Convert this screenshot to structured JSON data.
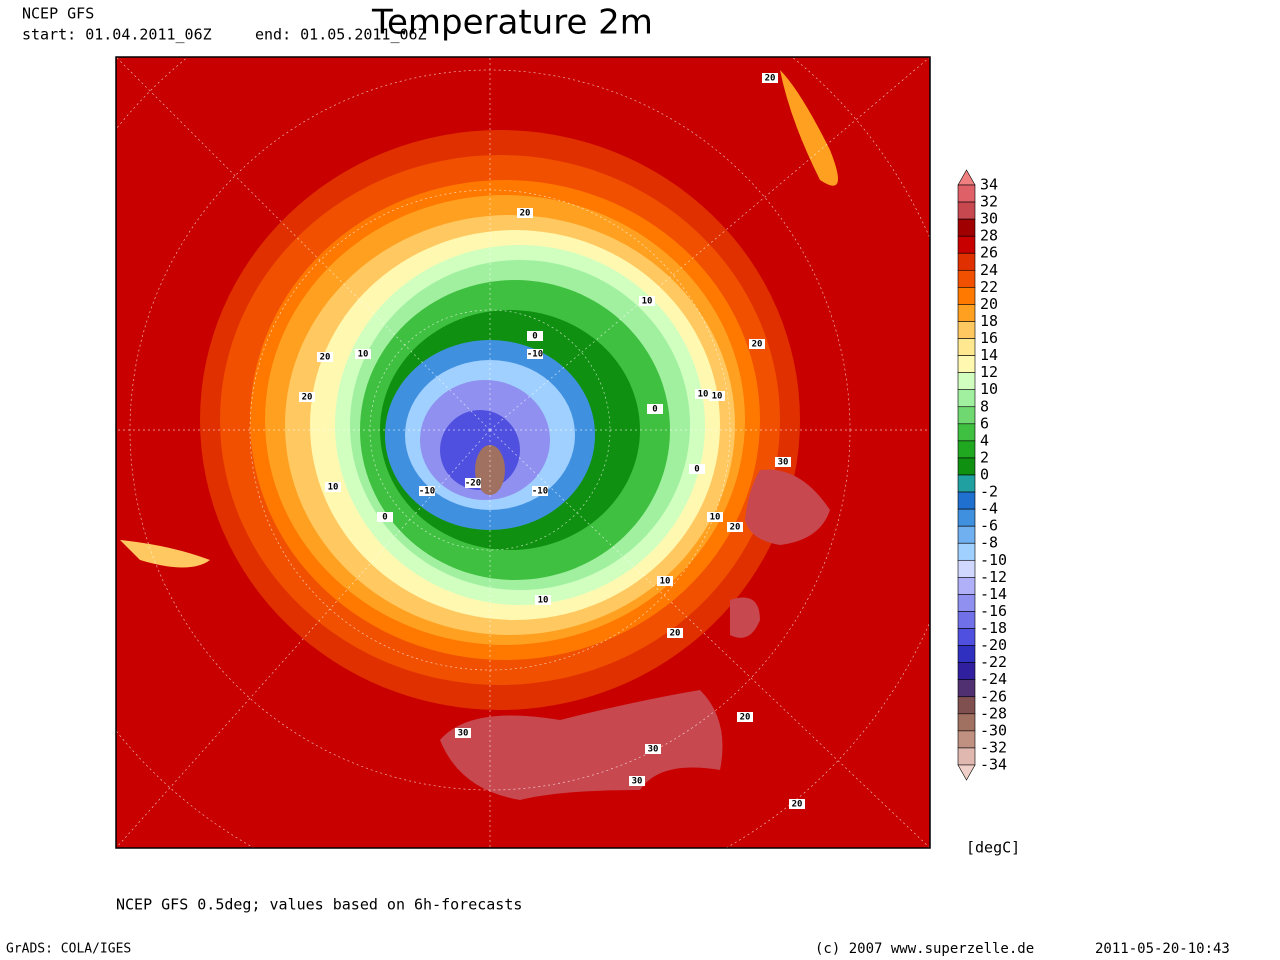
{
  "header": {
    "source": "NCEP GFS",
    "start": "start: 01.04.2011_06Z",
    "end": "end: 01.05.2011_06Z",
    "title": "Temperature 2m"
  },
  "map": {
    "contour_labels": [
      20,
      20,
      10,
      0,
      -10,
      20,
      10,
      20,
      10,
      0,
      0,
      -20,
      -10,
      -10,
      10,
      0,
      10,
      30,
      20,
      10,
      10,
      10,
      20,
      20,
      30,
      30,
      30,
      20,
      20
    ]
  },
  "colorbar": {
    "levels": [
      34,
      32,
      30,
      28,
      26,
      24,
      22,
      20,
      18,
      16,
      14,
      12,
      10,
      8,
      6,
      4,
      2,
      0,
      -2,
      -4,
      -6,
      -8,
      -10,
      -12,
      -14,
      -16,
      -18,
      -20,
      -22,
      -24,
      -26,
      -28,
      -30,
      -32,
      -34
    ],
    "colors": [
      "#f08080",
      "#e06068",
      "#c84850",
      "#a00000",
      "#c80000",
      "#e03000",
      "#f05000",
      "#ff7800",
      "#ffa020",
      "#ffc860",
      "#ffe890",
      "#fff8b0",
      "#d0ffc0",
      "#a0f0a0",
      "#70d870",
      "#40c040",
      "#20a820",
      "#109010",
      "#20a0a0",
      "#2070d0",
      "#4090e0",
      "#70b0f0",
      "#a0d0ff",
      "#d0d8ff",
      "#b0b0f8",
      "#9090f0",
      "#7070e8",
      "#5050e0",
      "#3030c0",
      "#3020a0",
      "#503070",
      "#805050",
      "#a07060",
      "#c09080",
      "#e0b8b0",
      "#f0d0c8"
    ],
    "unit": "[degC]"
  },
  "footer": {
    "note": "NCEP GFS 0.5deg; values based on 6h-forecasts",
    "credit": "GrADS: COLA/IGES",
    "copyright": "(c) 2007 www.superzelle.de",
    "timestamp": "2011-05-20-10:43"
  }
}
